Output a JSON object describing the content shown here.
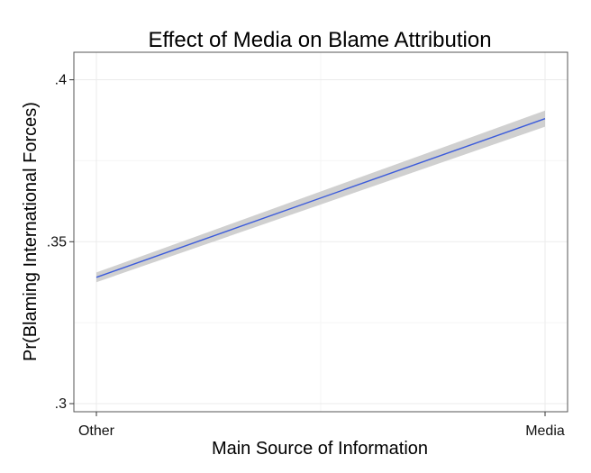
{
  "chart_data": {
    "type": "line",
    "title": "Effect of Media on Blame Attribution",
    "xlabel": "Main Source of Information",
    "ylabel": "Pr(Blaming International Forces)",
    "categories": [
      "Other",
      "Media"
    ],
    "series": [
      {
        "values": [
          0.339,
          0.388
        ],
        "ci_lower": [
          0.3375,
          0.3855
        ],
        "ci_upper": [
          0.3405,
          0.3905
        ]
      }
    ],
    "ylim": [
      0.2975,
      0.4085
    ],
    "yticks": [
      0.3,
      0.35,
      0.4
    ],
    "ytick_labels": [
      ".3",
      ".35",
      ".4"
    ],
    "grid": true,
    "legend": "none",
    "colors": {
      "line": "#3b5bdb",
      "band": "#c8c8c8",
      "grid_major": "#ebebeb",
      "grid_minor": "#f5f5f5",
      "frame": "#555555"
    }
  }
}
